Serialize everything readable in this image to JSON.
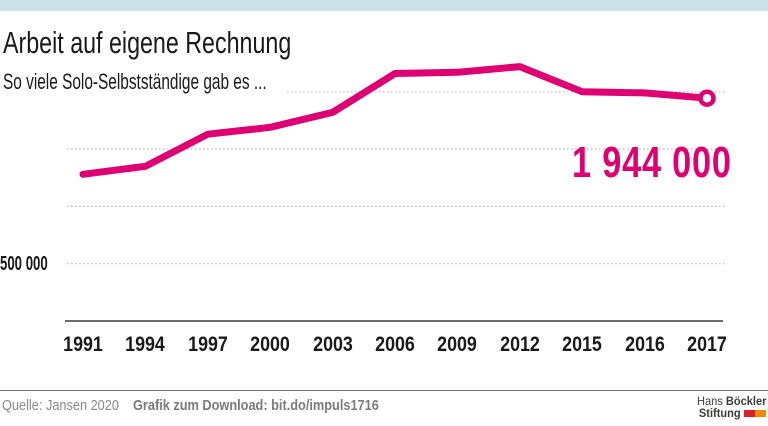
{
  "top_bar": {
    "color": "#CCE2EB"
  },
  "chart_data": {
    "type": "line",
    "title": "Arbeit auf eigene Rechnung",
    "subtitle": "So viele Solo-Selbstständige gab es ...",
    "categories": [
      "1991",
      "1994",
      "1997",
      "2000",
      "2003",
      "2006",
      "2009",
      "2012",
      "2015",
      "2016",
      "2017"
    ],
    "series": [
      {
        "name": "Solo-Selbstständige",
        "values": [
          1280000,
          1350000,
          1630000,
          1690000,
          1820000,
          2160000,
          2170000,
          2220000,
          2000000,
          1990000,
          1944000
        ]
      }
    ],
    "ylim": [
      0,
      2400000
    ],
    "y_gridline_values": [
      500000,
      1000000,
      1500000,
      2000000
    ],
    "y_tick_label": "500 000",
    "grid": "horizontal-dotted",
    "legend": "none",
    "end_marker": "open-circle-on-last-point",
    "end_value_label": "1 944 000",
    "line_color": "#DE0073",
    "gridline_color": "#BDB8AC",
    "axis_color": "#3C3C3B"
  },
  "footer": {
    "source": "Quelle: Jansen 2020",
    "download": "Grafik zum Download: bit.do/impuls1716",
    "logo": {
      "name1_regular": "Hans",
      "name1_bold": "Böckler",
      "name2_bold": "Stiftung",
      "block_colors": [
        "#D2232A",
        "#F08C00"
      ]
    }
  }
}
